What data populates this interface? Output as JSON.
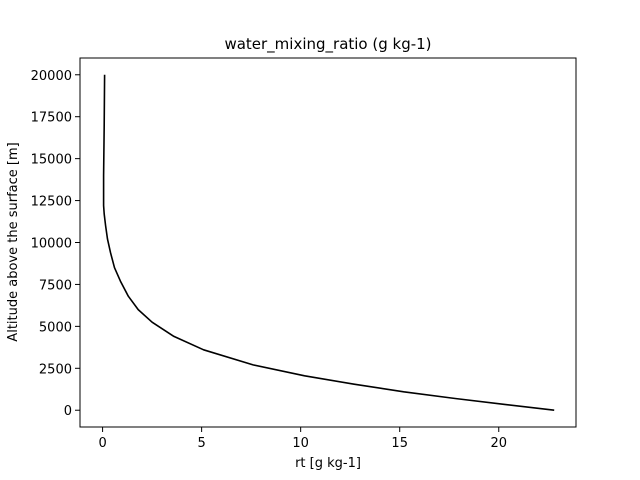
{
  "chart_data": {
    "type": "line",
    "title": "water_mixing_ratio (g kg-1)",
    "xlabel": "rt [g kg-1]",
    "ylabel": "Altitude above the surface [m]",
    "xlim": [
      -1.14,
      23.9
    ],
    "ylim": [
      -1000,
      21000
    ],
    "xticks": [
      0,
      5,
      10,
      15,
      20
    ],
    "yticks": [
      0,
      2500,
      5000,
      7500,
      10000,
      12500,
      15000,
      17500,
      20000
    ],
    "grid": false,
    "series": [
      {
        "color": "#000000",
        "x": [
          22.8,
          20.3,
          17.8,
          15.2,
          12.7,
          10.2,
          7.6,
          5.1,
          3.6,
          2.5,
          1.8,
          1.3,
          0.9,
          0.6,
          0.4,
          0.25,
          0.15,
          0.08,
          0.05,
          0.05,
          0.08,
          0.1
        ],
        "y": [
          0,
          350,
          700,
          1100,
          1550,
          2050,
          2700,
          3600,
          4400,
          5250,
          6000,
          6800,
          7700,
          8500,
          9400,
          10200,
          11000,
          11700,
          12200,
          14000,
          17000,
          20000
        ]
      }
    ]
  }
}
